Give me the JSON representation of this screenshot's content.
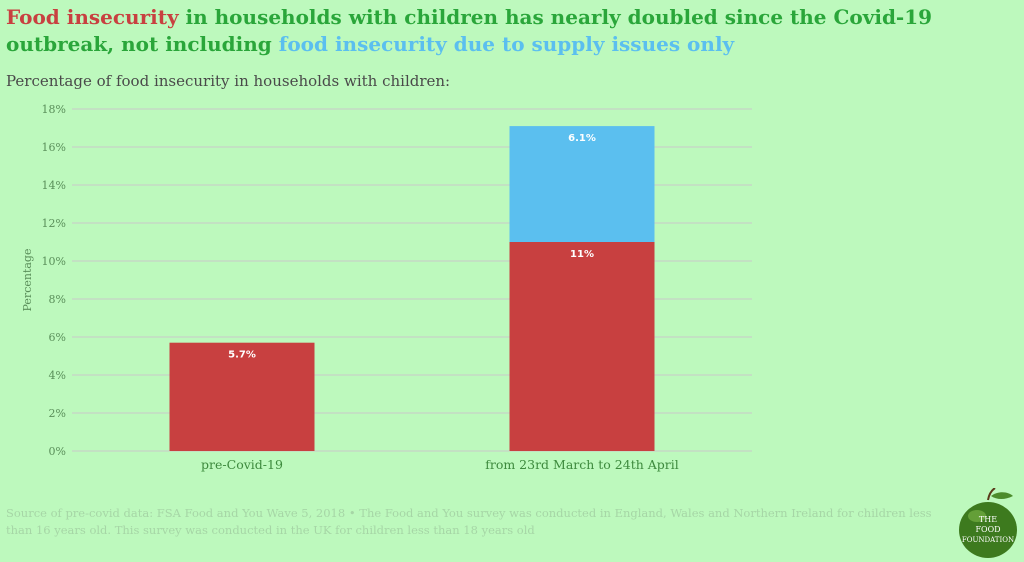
{
  "title": {
    "part1": "Food insecurity",
    "part2": " in households with children has nearly doubled since the Covid-19 outbreak, not including ",
    "part3": "food insecurity due to supply issues only"
  },
  "subtitle": "Percentage of food insecurity in households with children:",
  "footnote": "Source of pre-covid data: FSA Food and You Wave 5, 2018 • The Food and You survey was conducted in England, Wales and Northern Ireland for children less than 16 years old. This survey was conducted in the UK for children less than 18 years old",
  "logo": {
    "line1": "THE",
    "line2": "FOOD",
    "line3": "FOUNDATION"
  },
  "colors": {
    "red": "#c84040",
    "blue": "#5bbfef",
    "green_text": "#2aa63a",
    "background": "#bdf9bd",
    "grid": "#c9c9c9"
  },
  "chart_data": {
    "type": "bar",
    "stacked": true,
    "categories": [
      "pre-Covid-19",
      "from 23rd March to 24th April"
    ],
    "series": [
      {
        "name": "Food insecurity",
        "color": "#c84040",
        "values": [
          5.7,
          11
        ],
        "labels": [
          "5.7%",
          "11%"
        ]
      },
      {
        "name": "food insecurity due to supply issues only",
        "color": "#5bbfef",
        "values": [
          0,
          6.1
        ],
        "labels": [
          "",
          "6.1%"
        ]
      }
    ],
    "ylabel": "Percentage",
    "ylim": [
      0,
      18
    ],
    "yticks": [
      0,
      2,
      4,
      6,
      8,
      10,
      12,
      14,
      16,
      18
    ],
    "ytick_labels": [
      "0%",
      "2%",
      "4%",
      "6%",
      "8%",
      "10%",
      "12%",
      "14%",
      "16%",
      "18%"
    ],
    "grid": true
  }
}
